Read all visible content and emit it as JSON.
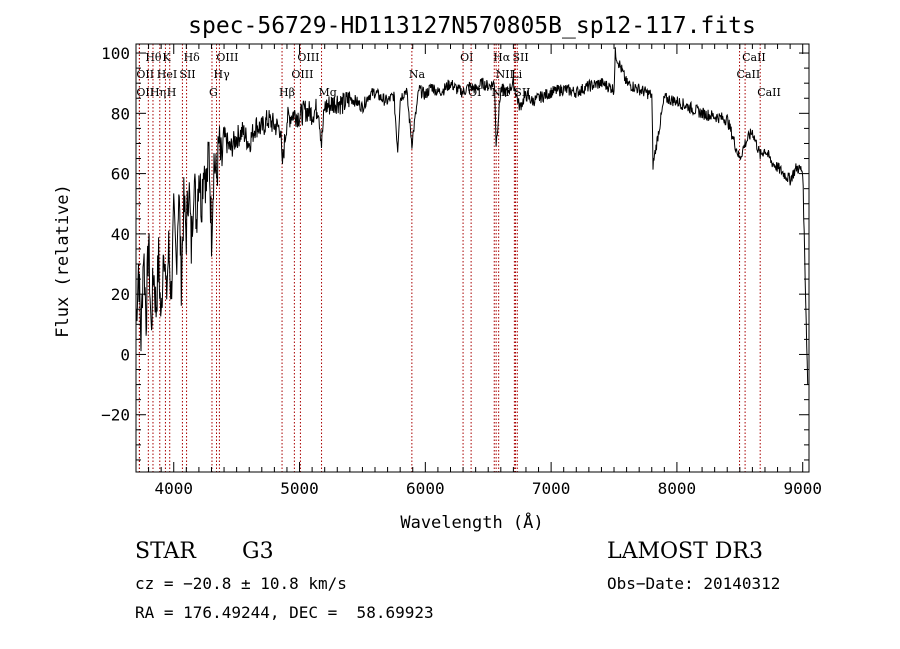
{
  "chart_data": {
    "type": "line",
    "title": "spec-56729-HD113127N570805B_sp12-117.fits",
    "xlabel": "Wavelength (Å)",
    "ylabel": "Flux (relative)",
    "xlim": [
      3700,
      9050
    ],
    "ylim": [
      -39,
      103
    ],
    "xticks": [
      4000,
      5000,
      6000,
      7000,
      8000,
      9000
    ],
    "yticks": [
      -20,
      0,
      20,
      40,
      60,
      80,
      100
    ],
    "grid": false,
    "series": [
      {
        "name": "flux",
        "x": [
          3700,
          3720,
          3740,
          3760,
          3780,
          3800,
          3820,
          3840,
          3860,
          3880,
          3900,
          3920,
          3940,
          3960,
          3980,
          4000,
          4020,
          4040,
          4060,
          4080,
          4100,
          4120,
          4140,
          4160,
          4180,
          4200,
          4220,
          4240,
          4260,
          4280,
          4300,
          4320,
          4340,
          4360,
          4380,
          4400,
          4450,
          4500,
          4550,
          4600,
          4650,
          4700,
          4750,
          4800,
          4850,
          4861,
          4900,
          4950,
          5000,
          5050,
          5100,
          5150,
          5175,
          5200,
          5250,
          5300,
          5350,
          5400,
          5450,
          5500,
          5550,
          5600,
          5650,
          5700,
          5750,
          5780,
          5800,
          5850,
          5893,
          5950,
          6000,
          6050,
          6100,
          6150,
          6200,
          6250,
          6300,
          6350,
          6400,
          6450,
          6500,
          6550,
          6563,
          6600,
          6650,
          6700,
          6750,
          6800,
          6850,
          6900,
          6950,
          7000,
          7100,
          7200,
          7300,
          7400,
          7500,
          7510,
          7600,
          7700,
          7800,
          7810,
          7900,
          8000,
          8100,
          8200,
          8300,
          8400,
          8498,
          8542,
          8600,
          8662,
          8700,
          8750,
          8800,
          8850,
          8900,
          8950,
          9000,
          9040
        ],
        "y": [
          10,
          30,
          5,
          35,
          12,
          38,
          8,
          28,
          15,
          32,
          10,
          40,
          18,
          35,
          20,
          45,
          30,
          55,
          25,
          50,
          40,
          58,
          35,
          60,
          45,
          62,
          50,
          65,
          55,
          68,
          40,
          65,
          58,
          70,
          62,
          72,
          68,
          72,
          74,
          70,
          76,
          75,
          78,
          76,
          75,
          62,
          78,
          80,
          79,
          81,
          80,
          82,
          70,
          82,
          83,
          84,
          83,
          85,
          84,
          82,
          86,
          87,
          85,
          84,
          86,
          68,
          85,
          88,
          70,
          88,
          86,
          89,
          87,
          88,
          90,
          88,
          87,
          89,
          88,
          90,
          89,
          90,
          70,
          88,
          87,
          90,
          82,
          86,
          84,
          85,
          86,
          87,
          88,
          87,
          89,
          90,
          88,
          100,
          90,
          88,
          86,
          63,
          85,
          84,
          82,
          80,
          79,
          78,
          65,
          70,
          74,
          66,
          68,
          64,
          62,
          60,
          58,
          62,
          61,
          -10
        ]
      }
    ],
    "line_markers": [
      {
        "name": "Hθ",
        "wavelength": 3798,
        "label_row": 1
      },
      {
        "name": "OII",
        "wavelength": 3727,
        "label_row": 2
      },
      {
        "name": "OII",
        "wavelength": 3727,
        "label_row": 3
      },
      {
        "name": "K",
        "wavelength": 3934,
        "label_row": 1
      },
      {
        "name": "HeI",
        "wavelength": 3889,
        "label_row": 2
      },
      {
        "name": "Hη",
        "wavelength": 3835,
        "label_row": 3
      },
      {
        "name": "Hδ",
        "wavelength": 4102,
        "label_row": 1
      },
      {
        "name": "SII",
        "wavelength": 4069,
        "label_row": 2
      },
      {
        "name": "H",
        "wavelength": 3968,
        "label_row": 3
      },
      {
        "name": "OIII",
        "wavelength": 4363,
        "label_row": 1
      },
      {
        "name": "Hγ",
        "wavelength": 4340,
        "label_row": 2
      },
      {
        "name": "G",
        "wavelength": 4304,
        "label_row": 3
      },
      {
        "name": "OIII",
        "wavelength": 5007,
        "label_row": 1
      },
      {
        "name": "OIII",
        "wavelength": 4959,
        "label_row": 2
      },
      {
        "name": "Hβ",
        "wavelength": 4861,
        "label_row": 4
      },
      {
        "name": "Mg",
        "wavelength": 5175,
        "label_row": 4
      },
      {
        "name": "Na",
        "wavelength": 5893,
        "label_row": 2
      },
      {
        "name": "OI",
        "wavelength": 6300,
        "label_row": 1
      },
      {
        "name": "OI",
        "wavelength": 6364,
        "label_row": 3
      },
      {
        "name": "Hα",
        "wavelength": 6563,
        "label_row": 1
      },
      {
        "name": "SII",
        "wavelength": 6717,
        "label_row": 1
      },
      {
        "name": "NII",
        "wavelength": 6583,
        "label_row": 2
      },
      {
        "name": "Li",
        "wavelength": 6708,
        "label_row": 2
      },
      {
        "name": "NII",
        "wavelength": 6548,
        "label_row": 3
      },
      {
        "name": "SII",
        "wavelength": 6731,
        "label_row": 3
      },
      {
        "name": "CaII",
        "wavelength": 8542,
        "label_row": 1
      },
      {
        "name": "CaII",
        "wavelength": 8498,
        "label_row": 2
      },
      {
        "name": "CaII",
        "wavelength": 8662,
        "label_row": 3
      }
    ]
  },
  "info": {
    "object_class": "STAR",
    "subclass": "G3",
    "survey": "LAMOST DR3",
    "redshift_line": "cz = −20.8 ± 10.8 km/s",
    "obs_date": "Obs−Date: 20140312",
    "coords": "RA = 176.49244, DEC =  58.69923"
  },
  "colors": {
    "axis": "#000000",
    "spectrum": "#000000",
    "marker_line": "#a80000"
  }
}
